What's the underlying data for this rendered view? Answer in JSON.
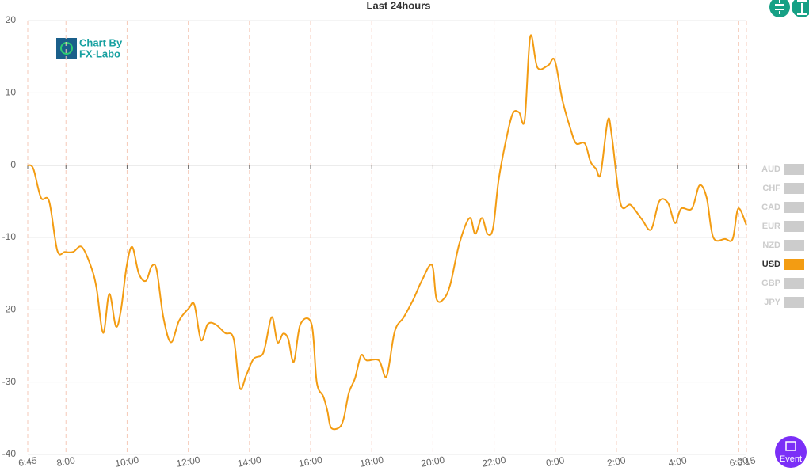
{
  "chart_data": {
    "type": "line",
    "title": "Last 24hours",
    "logo": [
      "Chart By",
      "FX-Labo"
    ],
    "event_label": "Event",
    "xlim": [
      0,
      1410
    ],
    "xticks": [
      {
        "value": 0,
        "label": "6:45"
      },
      {
        "value": 75,
        "label": "8:00"
      },
      {
        "value": 195,
        "label": "10:00"
      },
      {
        "value": 315,
        "label": "12:00"
      },
      {
        "value": 435,
        "label": "14:00"
      },
      {
        "value": 555,
        "label": "16:00"
      },
      {
        "value": 675,
        "label": "18:00"
      },
      {
        "value": 795,
        "label": "20:00"
      },
      {
        "value": 915,
        "label": "22:00"
      },
      {
        "value": 1035,
        "label": "0:00"
      },
      {
        "value": 1155,
        "label": "2:00"
      },
      {
        "value": 1275,
        "label": "4:00"
      },
      {
        "value": 1395,
        "label": "6:00"
      },
      {
        "value": 1410,
        "label": "6:15"
      }
    ],
    "ylim": [
      -40,
      20
    ],
    "yticks": [
      -40,
      -30,
      -20,
      -10,
      0,
      10,
      20
    ],
    "grid": true,
    "x": [
      0,
      11,
      26,
      42,
      58,
      73,
      89,
      106,
      124,
      135,
      148,
      160,
      173,
      183,
      194,
      205,
      218,
      232,
      243,
      253,
      266,
      281,
      297,
      316,
      327,
      340,
      353,
      368,
      387,
      404,
      416,
      429,
      443,
      459,
      466,
      479,
      490,
      501,
      511,
      522,
      535,
      557,
      567,
      580,
      588,
      595,
      611,
      620,
      630,
      642,
      654,
      665,
      689,
      704,
      720,
      738,
      757,
      773,
      793,
      802,
      816,
      829,
      847,
      867,
      878,
      891,
      902,
      913,
      924,
      940,
      952,
      964,
      975,
      986,
      1000,
      1021,
      1034,
      1049,
      1065,
      1076,
      1093,
      1104,
      1115,
      1124,
      1138,
      1146,
      1163,
      1183,
      1205,
      1223,
      1239,
      1256,
      1270,
      1282,
      1303,
      1318,
      1332,
      1345,
      1368,
      1383,
      1394,
      1410
    ],
    "series": [
      {
        "name": "AUD",
        "color": "#cccccc",
        "hidden": true
      },
      {
        "name": "CHF",
        "color": "#cccccc",
        "hidden": true
      },
      {
        "name": "CAD",
        "color": "#cccccc",
        "hidden": true
      },
      {
        "name": "EUR",
        "color": "#cccccc",
        "hidden": true
      },
      {
        "name": "NZD",
        "color": "#cccccc",
        "hidden": true
      },
      {
        "name": "USD",
        "color": "#f39c12",
        "values": [
          0,
          -0.5,
          -4.5,
          -5,
          -11.8,
          -12,
          -12,
          -11.3,
          -14,
          -17,
          -23.2,
          -17.8,
          -22.3,
          -20,
          -14,
          -11.3,
          -15,
          -16,
          -14,
          -14.5,
          -21,
          -24.5,
          -21.5,
          -19.8,
          -19.3,
          -24.2,
          -22,
          -22,
          -23.2,
          -24,
          -30.8,
          -29,
          -26.8,
          -26.3,
          -25,
          -21,
          -24.5,
          -23.3,
          -24,
          -27.2,
          -22,
          -22,
          -30,
          -32,
          -34,
          -36.3,
          -36.3,
          -35,
          -31.5,
          -29.5,
          -26.3,
          -27,
          -27,
          -29.2,
          -23,
          -21,
          -18.5,
          -16,
          -13.8,
          -18.5,
          -18.5,
          -16.5,
          -10.8,
          -7.3,
          -9.5,
          -7.3,
          -9.5,
          -8.7,
          -2,
          4,
          7.2,
          7.3,
          6.3,
          17.8,
          13.5,
          13.8,
          14.5,
          9,
          5,
          3,
          3,
          0.5,
          -0.5,
          -1.2,
          6.2,
          4,
          -5.3,
          -5.5,
          -7.5,
          -8.9,
          -5,
          -5.2,
          -8,
          -6,
          -6,
          -2.8,
          -4.5,
          -10,
          -10.2,
          -10.2,
          -6,
          -8.3
        ]
      },
      {
        "name": "GBP",
        "color": "#cccccc",
        "hidden": true
      },
      {
        "name": "JPY",
        "color": "#cccccc",
        "hidden": true
      }
    ]
  }
}
